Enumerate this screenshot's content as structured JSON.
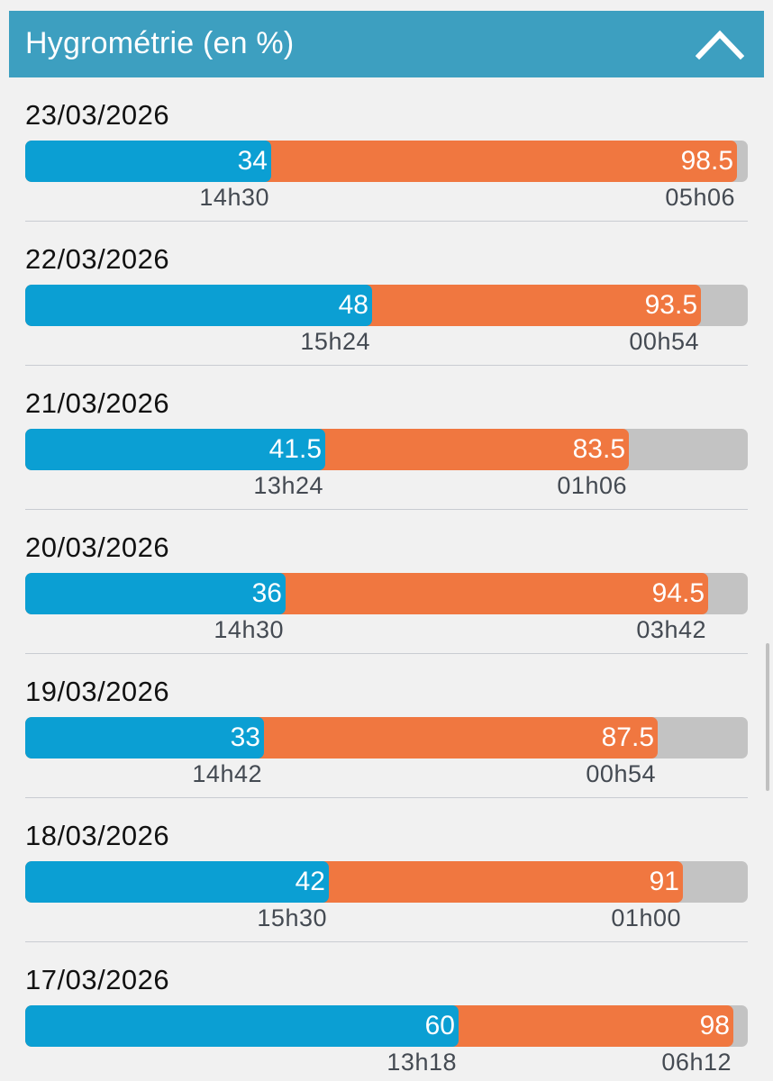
{
  "header": {
    "title": "Hygrométrie (en %)",
    "collapse_icon": "chevron-up-icon"
  },
  "scale": {
    "min": 0,
    "max": 100,
    "unit": "%"
  },
  "colors": {
    "min": "#0b9fd3",
    "max": "#f07740",
    "track": "#c3c3c3",
    "header": "#3d9fc0"
  },
  "days": [
    {
      "date": "23/03/2026",
      "min_value": "34",
      "min_time": "14h30",
      "max_value": "98.5",
      "max_time": "05h06"
    },
    {
      "date": "22/03/2026",
      "min_value": "48",
      "min_time": "15h24",
      "max_value": "93.5",
      "max_time": "00h54"
    },
    {
      "date": "21/03/2026",
      "min_value": "41.5",
      "min_time": "13h24",
      "max_value": "83.5",
      "max_time": "01h06"
    },
    {
      "date": "20/03/2026",
      "min_value": "36",
      "min_time": "14h30",
      "max_value": "94.5",
      "max_time": "03h42"
    },
    {
      "date": "19/03/2026",
      "min_value": "33",
      "min_time": "14h42",
      "max_value": "87.5",
      "max_time": "00h54"
    },
    {
      "date": "18/03/2026",
      "min_value": "42",
      "min_time": "15h30",
      "max_value": "91",
      "max_time": "01h00"
    },
    {
      "date": "17/03/2026",
      "min_value": "60",
      "min_time": "13h18",
      "max_value": "98",
      "max_time": "06h12"
    }
  ]
}
